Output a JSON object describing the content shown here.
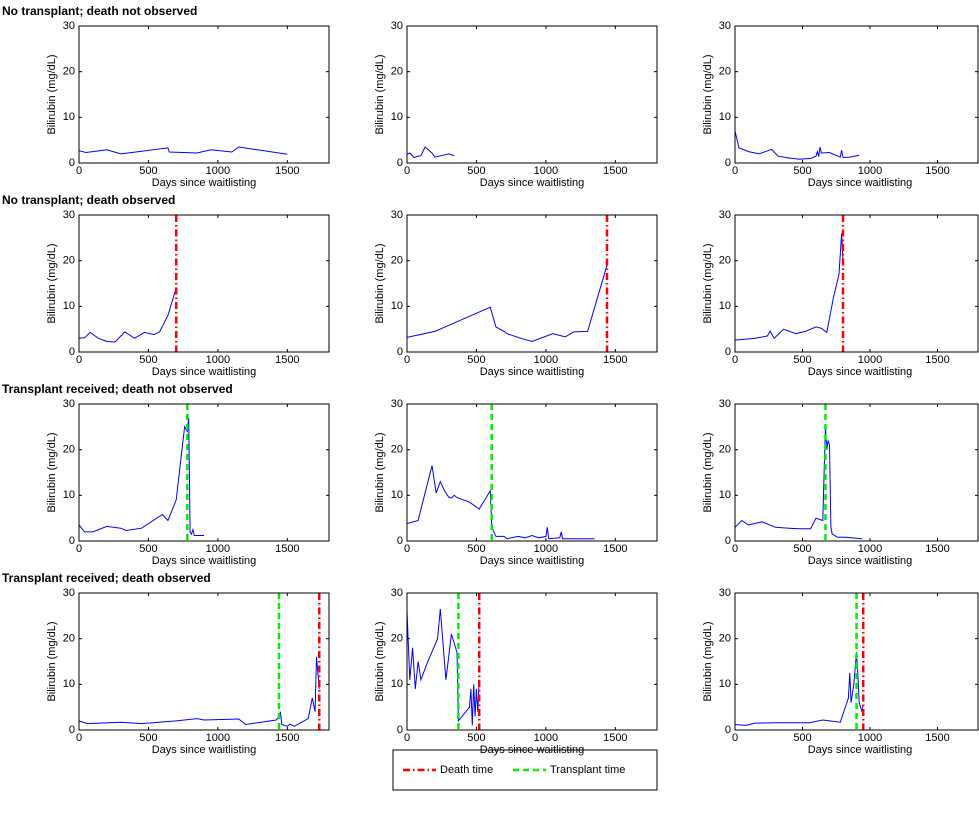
{
  "chart_data": [
    {
      "type": "line",
      "title": "No transplant; death not observed",
      "xlabel": "Days since waitlisting",
      "ylabel": "Bilirubin (mg/dL)",
      "xlim": [
        0,
        1800
      ],
      "ylim": [
        0,
        30
      ],
      "xticks": [
        0,
        500,
        1000,
        1500
      ],
      "yticks": [
        0,
        10,
        20,
        30
      ],
      "color": "#0000ff",
      "x": [
        0,
        50,
        100,
        200,
        300,
        640,
        650,
        850,
        950,
        1100,
        1150,
        1500
      ],
      "values": [
        2.7,
        2.3,
        2.5,
        2.9,
        2.0,
        3.3,
        2.4,
        2.2,
        2.9,
        2.4,
        3.5,
        1.9
      ]
    },
    {
      "type": "line",
      "xlabel": "Days since waitlisting",
      "ylabel": "Bilirubin (mg/dL)",
      "xlim": [
        0,
        1800
      ],
      "ylim": [
        0,
        30
      ],
      "xticks": [
        0,
        500,
        1000,
        1500
      ],
      "yticks": [
        0,
        10,
        20,
        30
      ],
      "color": "#0000ff",
      "x": [
        0,
        20,
        50,
        80,
        100,
        130,
        180,
        200,
        260,
        300,
        340
      ],
      "values": [
        1.9,
        2.2,
        1.2,
        1.5,
        1.6,
        3.5,
        2.2,
        1.3,
        1.7,
        2.0,
        1.6
      ]
    },
    {
      "type": "line",
      "xlabel": "Days since waitlisting",
      "ylabel": "Bilirubin (mg/dL)",
      "xlim": [
        0,
        1800
      ],
      "ylim": [
        0,
        30
      ],
      "xticks": [
        0,
        500,
        1000,
        1500
      ],
      "yticks": [
        0,
        10,
        20,
        30
      ],
      "color": "#0000ff",
      "x": [
        0,
        30,
        100,
        180,
        270,
        320,
        400,
        480,
        560,
        600,
        610,
        620,
        630,
        640,
        700,
        780,
        790,
        800,
        850,
        920
      ],
      "values": [
        7,
        3.3,
        2.5,
        2.0,
        3.0,
        1.5,
        1.1,
        0.8,
        1.0,
        1.5,
        2.5,
        1.4,
        3.5,
        2.2,
        2.3,
        1.3,
        2.8,
        1.2,
        1.3,
        1.7
      ]
    },
    {
      "type": "line",
      "title": "No transplant; death observed",
      "xlabel": "Days since waitlisting",
      "ylabel": "Bilirubin (mg/dL)",
      "xlim": [
        0,
        1800
      ],
      "ylim": [
        0,
        30
      ],
      "xticks": [
        0,
        500,
        1000,
        1500
      ],
      "yticks": [
        0,
        10,
        20,
        30
      ],
      "color": "#0000ff",
      "death_time": 700,
      "x": [
        0,
        40,
        80,
        140,
        200,
        260,
        330,
        400,
        470,
        540,
        580,
        640,
        690,
        700
      ],
      "values": [
        3.0,
        3.1,
        4.3,
        3.0,
        2.3,
        2.2,
        4.4,
        3.0,
        4.3,
        3.8,
        4.4,
        8,
        13,
        14
      ]
    },
    {
      "type": "line",
      "xlabel": "Days since waitlisting",
      "ylabel": "Bilirubin (mg/dL)",
      "xlim": [
        0,
        1800
      ],
      "ylim": [
        0,
        30
      ],
      "xticks": [
        0,
        500,
        1000,
        1500
      ],
      "yticks": [
        0,
        10,
        20,
        30
      ],
      "color": "#0000ff",
      "death_time": 1440,
      "x": [
        0,
        200,
        600,
        640,
        700,
        720,
        820,
        900,
        1050,
        1140,
        1200,
        1300,
        1440
      ],
      "values": [
        3.2,
        4.5,
        9.8,
        5.5,
        4.5,
        4.0,
        3.0,
        2.3,
        4.0,
        3.3,
        4.4,
        4.5,
        19
      ]
    },
    {
      "type": "line",
      "xlabel": "Days since waitlisting",
      "ylabel": "Bilirubin (mg/dL)",
      "xlim": [
        0,
        1800
      ],
      "ylim": [
        0,
        30
      ],
      "xticks": [
        0,
        500,
        1000,
        1500
      ],
      "yticks": [
        0,
        10,
        20,
        30
      ],
      "color": "#0000ff",
      "death_time": 800,
      "x": [
        0,
        150,
        240,
        260,
        290,
        360,
        450,
        520,
        600,
        640,
        680,
        730,
        770,
        790,
        800
      ],
      "values": [
        2.6,
        3.0,
        3.5,
        4.6,
        3.0,
        5.0,
        4.0,
        4.5,
        5.5,
        5.2,
        4.3,
        12,
        17,
        26,
        20
      ]
    },
    {
      "type": "line",
      "title": "Transplant received; death not observed",
      "xlabel": "Days since waitlisting",
      "ylabel": "Bilirubin (mg/dL)",
      "xlim": [
        0,
        1800
      ],
      "ylim": [
        0,
        30
      ],
      "xticks": [
        0,
        500,
        1000,
        1500
      ],
      "yticks": [
        0,
        10,
        20,
        30
      ],
      "color": "#0000ff",
      "transplant_time": 780,
      "x": [
        0,
        40,
        100,
        200,
        300,
        340,
        450,
        600,
        640,
        700,
        760,
        780,
        790,
        800,
        810,
        820,
        830,
        900
      ],
      "values": [
        3.5,
        2.0,
        2.0,
        3.2,
        2.8,
        2.3,
        2.8,
        5.8,
        4.5,
        9,
        25,
        24,
        27,
        2.0,
        1.5,
        2.5,
        1.2,
        1.2
      ]
    },
    {
      "type": "line",
      "xlabel": "Days since waitlisting",
      "ylabel": "Bilirubin (mg/dL)",
      "xlim": [
        0,
        1800
      ],
      "ylim": [
        0,
        30
      ],
      "xticks": [
        0,
        500,
        1000,
        1500
      ],
      "yticks": [
        0,
        10,
        20,
        30
      ],
      "color": "#0000ff",
      "transplant_time": 610,
      "x": [
        0,
        80,
        180,
        210,
        240,
        270,
        300,
        320,
        340,
        360,
        450,
        520,
        600,
        610,
        640,
        700,
        720,
        800,
        850,
        900,
        950,
        1000,
        1010,
        1020,
        1100,
        1110,
        1120,
        1350
      ],
      "values": [
        3.8,
        4.5,
        16.5,
        10.5,
        13,
        11,
        9.6,
        9.4,
        10,
        9.5,
        8.5,
        7,
        11,
        3,
        1,
        1,
        0.5,
        1,
        0.7,
        1.2,
        0.7,
        1,
        3,
        0.5,
        0.7,
        2,
        0.5,
        0.5
      ]
    },
    {
      "type": "line",
      "xlabel": "Days since waitlisting",
      "ylabel": "Bilirubin (mg/dL)",
      "xlim": [
        0,
        1800
      ],
      "ylim": [
        0,
        30
      ],
      "xticks": [
        0,
        500,
        1000,
        1500
      ],
      "yticks": [
        0,
        10,
        20,
        30
      ],
      "color": "#0000ff",
      "transplant_time": 670,
      "x": [
        0,
        50,
        100,
        200,
        300,
        400,
        480,
        540,
        560,
        600,
        650,
        660,
        670,
        680,
        690,
        700,
        710,
        720,
        760,
        820,
        940
      ],
      "values": [
        3.0,
        4.5,
        3.5,
        4.2,
        3.0,
        2.8,
        2.7,
        2.7,
        2.7,
        5.0,
        4.5,
        15,
        25,
        20,
        22,
        21,
        3,
        1.5,
        0.8,
        0.8,
        0.5
      ]
    },
    {
      "type": "line",
      "title": "Transplant received; death observed",
      "xlabel": "Days since waitlisting",
      "ylabel": "Bilirubin (mg/dL)",
      "xlim": [
        0,
        1800
      ],
      "ylim": [
        0,
        30
      ],
      "xticks": [
        0,
        500,
        1000,
        1500
      ],
      "yticks": [
        0,
        10,
        20,
        30
      ],
      "color": "#0000ff",
      "transplant_time": 1440,
      "death_time": 1730,
      "x": [
        0,
        60,
        300,
        450,
        700,
        850,
        900,
        1150,
        1200,
        1420,
        1440,
        1450,
        1460,
        1500,
        1520,
        1550,
        1650,
        1680,
        1700,
        1710,
        1730
      ],
      "values": [
        2.0,
        1.4,
        1.7,
        1.4,
        2.0,
        2.5,
        2.2,
        2.4,
        1.2,
        2.2,
        2.9,
        4,
        1.2,
        0.8,
        1.3,
        0.8,
        2.5,
        7,
        4,
        16,
        9
      ]
    },
    {
      "type": "line",
      "xlabel": "Days since waitlisting",
      "ylabel": "Bilirubin (mg/dL)",
      "xlim": [
        0,
        1800
      ],
      "ylim": [
        0,
        30
      ],
      "xticks": [
        0,
        500,
        1000,
        1500
      ],
      "yticks": [
        0,
        10,
        20,
        30
      ],
      "color": "#0000ff",
      "transplant_time": 370,
      "death_time": 520,
      "x": [
        0,
        20,
        40,
        60,
        80,
        100,
        150,
        220,
        240,
        280,
        320,
        360,
        370,
        450,
        460,
        470,
        480,
        490,
        500,
        510,
        520
      ],
      "values": [
        26,
        11,
        18,
        9,
        15,
        11,
        15,
        20,
        26.5,
        11,
        21,
        17,
        2,
        5,
        9,
        1,
        10,
        3,
        9,
        4,
        11
      ]
    },
    {
      "type": "line",
      "xlabel": "Days since waitlisting",
      "ylabel": "Bilirubin (mg/dL)",
      "xlim": [
        0,
        1800
      ],
      "ylim": [
        0,
        30
      ],
      "xticks": [
        0,
        500,
        1000,
        1500
      ],
      "yticks": [
        0,
        10,
        20,
        30
      ],
      "color": "#0000ff",
      "transplant_time": 900,
      "death_time": 950,
      "x": [
        0,
        80,
        150,
        300,
        450,
        550,
        650,
        780,
        840,
        850,
        860,
        880,
        900,
        910,
        920,
        940,
        950
      ],
      "values": [
        1.2,
        1.0,
        1.5,
        1.6,
        1.6,
        1.6,
        2.2,
        1.7,
        7,
        12.5,
        6,
        10,
        17,
        12,
        6,
        4,
        5.5
      ]
    }
  ],
  "legend": {
    "entries": [
      {
        "name": "Death time",
        "color": "#ff0000",
        "dash": "7 3 1.5 3"
      },
      {
        "name": "Transplant time",
        "color": "#00ee00",
        "dash": "6 4"
      }
    ]
  }
}
